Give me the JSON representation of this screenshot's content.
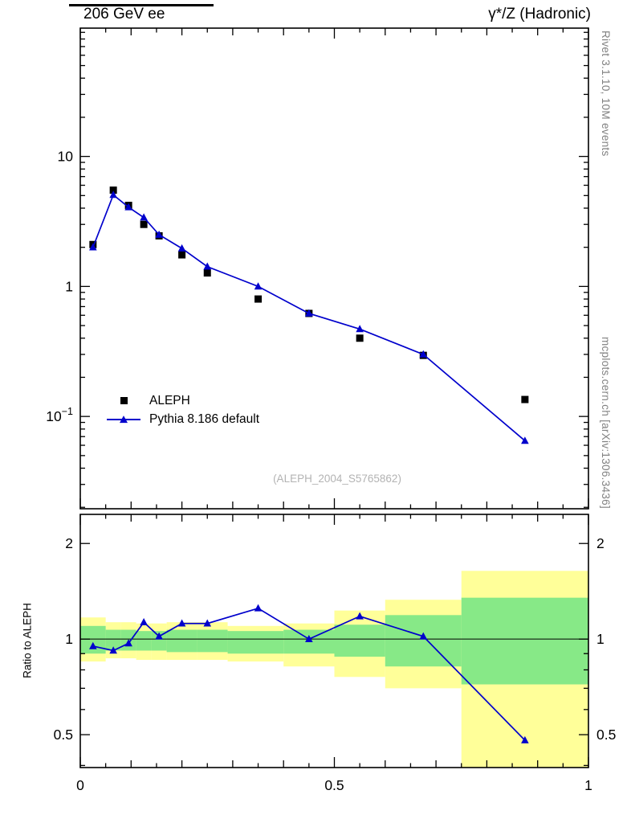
{
  "header": {
    "title_left": "206 GeV ee",
    "title_right": "γ*/Z (Hadronic)"
  },
  "side_notes": {
    "right_top": "Rivet 3.1.10,  10M events",
    "right_bottom": "mcplots.cern.ch [arXiv:1306.3436]"
  },
  "watermark": "(ALEPH_2004_S5765862)",
  "legend": [
    {
      "label": "ALEPH",
      "marker": "black-square"
    },
    {
      "label": "Pythia 8.186 default",
      "marker": "blue-triangle-line"
    }
  ],
  "ratio_panel_label": "Ratio to ALEPH",
  "chart_data": {
    "type": "line",
    "title": "206 GeV ee — γ*/Z (Hadronic)",
    "x_range": [
      0,
      1
    ],
    "x_ticks": {
      "labeled": [
        {
          "v": 0,
          "label": "0"
        },
        {
          "v": 0.5,
          "label": "0.5"
        },
        {
          "v": 1,
          "label": "1"
        }
      ],
      "medium_step": 0.1,
      "minor_step": 0.05
    },
    "colors": {
      "data": "#000000",
      "mc": "#0000cc",
      "band_yellow": "#ffff99",
      "band_green": "#87e987"
    },
    "top_panel": {
      "y_scale": "log",
      "y_range": [
        0.0195,
        97
      ],
      "y_ticks": [
        {
          "v": 10,
          "label": "10"
        },
        {
          "v": 1,
          "label": "1"
        },
        {
          "v": 0.1,
          "label": "10",
          "sup": "−1"
        }
      ],
      "series": [
        {
          "name": "ALEPH",
          "marker": "square",
          "color": "#000000",
          "line": false,
          "x": [
            0.025,
            0.065,
            0.095,
            0.125,
            0.155,
            0.2,
            0.25,
            0.35,
            0.45,
            0.55,
            0.675,
            0.875
          ],
          "y": [
            2.1,
            5.5,
            4.2,
            3.0,
            2.45,
            1.75,
            1.27,
            0.8,
            0.62,
            0.4,
            0.295,
            0.135
          ]
        },
        {
          "name": "Pythia 8.186 default",
          "marker": "triangle",
          "color": "#0000cc",
          "line": true,
          "x": [
            0.025,
            0.065,
            0.095,
            0.125,
            0.155,
            0.2,
            0.25,
            0.35,
            0.45,
            0.55,
            0.675,
            0.875
          ],
          "y": [
            2.0,
            5.06,
            4.07,
            3.39,
            2.5,
            1.96,
            1.42,
            1.0,
            0.62,
            0.47,
            0.3,
            0.065
          ]
        }
      ]
    },
    "ratio_panel": {
      "y_scale": "log",
      "y_range": [
        0.394,
        2.47
      ],
      "reference_line": 1,
      "y_ticks": [
        {
          "v": 0.5,
          "label": "0.5"
        },
        {
          "v": 1,
          "label": "1"
        },
        {
          "v": 2,
          "label": "2"
        }
      ],
      "bands": {
        "edges": [
          0,
          0.05,
          0.08,
          0.11,
          0.14,
          0.17,
          0.23,
          0.29,
          0.4,
          0.5,
          0.6,
          0.75,
          1.0
        ],
        "yellow": [
          [
            0.85,
            1.17
          ],
          [
            0.87,
            1.13
          ],
          [
            0.87,
            1.13
          ],
          [
            0.86,
            1.12
          ],
          [
            0.86,
            1.12
          ],
          [
            0.86,
            1.13
          ],
          [
            0.86,
            1.13
          ],
          [
            0.85,
            1.1
          ],
          [
            0.82,
            1.12
          ],
          [
            0.76,
            1.23
          ],
          [
            0.7,
            1.33
          ],
          [
            0.37,
            1.64
          ]
        ],
        "green": [
          [
            0.9,
            1.1
          ],
          [
            0.92,
            1.07
          ],
          [
            0.92,
            1.07
          ],
          [
            0.92,
            1.06
          ],
          [
            0.92,
            1.06
          ],
          [
            0.91,
            1.07
          ],
          [
            0.91,
            1.07
          ],
          [
            0.9,
            1.06
          ],
          [
            0.9,
            1.07
          ],
          [
            0.88,
            1.11
          ],
          [
            0.82,
            1.19
          ],
          [
            0.72,
            1.35
          ]
        ]
      },
      "series": [
        {
          "name": "Pythia/ALEPH",
          "marker": "triangle",
          "color": "#0000cc",
          "line": true,
          "x": [
            0.025,
            0.065,
            0.095,
            0.125,
            0.155,
            0.2,
            0.25,
            0.35,
            0.45,
            0.55,
            0.675,
            0.875
          ],
          "y": [
            0.95,
            0.92,
            0.97,
            1.13,
            1.02,
            1.12,
            1.12,
            1.25,
            1.0,
            1.18,
            1.02,
            0.48
          ]
        }
      ]
    }
  }
}
